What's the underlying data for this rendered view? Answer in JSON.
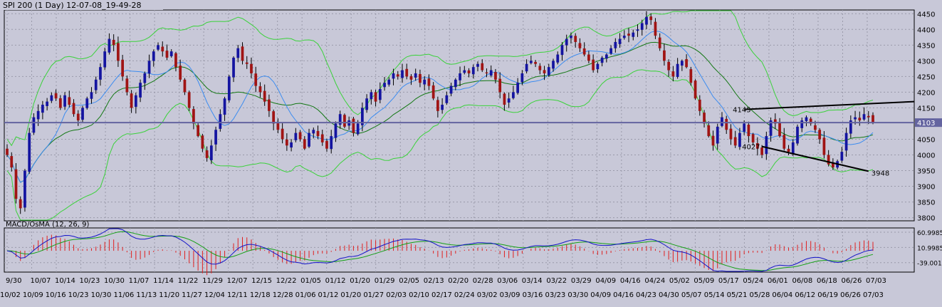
{
  "main_title": "SPI 200 (1 Day) 12-07-08_19-49-28",
  "macd_title": "MACD/OsMA (12, 26, 9)",
  "colors": {
    "background": "#c8c8d8",
    "grid": "#9a9aaa",
    "bull": "#1414a0",
    "bear": "#a01414",
    "bb_outer": "#3ad23a",
    "bb_mid": "#147814",
    "ma_inner": "#3c8cf0",
    "macd_line": "#1414c8",
    "signal_line": "#14a014",
    "histogram": "#e02020",
    "trendline": "#000000",
    "level_line": "#6464a0"
  },
  "chart_data": [
    {
      "type": "candlestick",
      "title": "SPI 200 (1 Day) 12-07-08_19-49-28",
      "y_ticks": [
        4450,
        4400,
        4350,
        4300,
        4250,
        4200,
        4150,
        4103,
        4050,
        4000,
        3950,
        3900,
        3850,
        3800
      ],
      "ylim": [
        3790,
        4462
      ],
      "current_value": 4103,
      "grid": true,
      "x_tick_labels_top": [
        "9/30",
        "10/07",
        "10/14",
        "10/23",
        "10/30",
        "11/07",
        "11/14",
        "11/22",
        "11/29",
        "12/07",
        "12/15",
        "12/22",
        "01/05",
        "01/12",
        "01/20",
        "01/29",
        "02/05",
        "02/13",
        "02/20",
        "02/28",
        "03/06",
        "03/14",
        "03/22",
        "03/29",
        "04/09",
        "04/16",
        "04/24",
        "05/02",
        "05/09",
        "05/17",
        "05/24",
        "06/01",
        "06/08",
        "06/18",
        "06/26",
        "07/03"
      ],
      "x_tick_labels_bottom": [
        "10/02",
        "10/09",
        "10/16",
        "10/23",
        "10/30",
        "11/06",
        "11/13",
        "11/20",
        "11/27",
        "12/04",
        "12/11",
        "12/18",
        "12/28",
        "01/06",
        "01/12",
        "01/20",
        "01/27",
        "02/03",
        "02/10",
        "02/17",
        "02/24",
        "03/02",
        "03/09",
        "03/16",
        "03/23",
        "03/30",
        "04/09",
        "04/16",
        "04/23",
        "04/30",
        "05/07",
        "05/14",
        "05/21",
        "05/28",
        "06/04",
        "06/12",
        "06/19",
        "06/26",
        "07/03"
      ],
      "closes": [
        4000,
        3960,
        3860,
        3830,
        3950,
        4070,
        4120,
        4140,
        4160,
        4170,
        4190,
        4180,
        4150,
        4190,
        4160,
        4130,
        4110,
        4150,
        4180,
        4200,
        4240,
        4280,
        4330,
        4370,
        4350,
        4300,
        4250,
        4200,
        4150,
        4190,
        4230,
        4260,
        4300,
        4330,
        4350,
        4330,
        4310,
        4330,
        4280,
        4240,
        4200,
        4150,
        4100,
        4060,
        4020,
        3990,
        4030,
        4080,
        4130,
        4180,
        4250,
        4310,
        4340,
        4300,
        4290,
        4260,
        4220,
        4200,
        4170,
        4140,
        4100,
        4080,
        4050,
        4030,
        4040,
        4070,
        4050,
        4020,
        4070,
        4080,
        4060,
        4040,
        4020,
        4060,
        4100,
        4130,
        4090,
        4110,
        4070,
        4100,
        4150,
        4180,
        4200,
        4170,
        4210,
        4230,
        4240,
        4260,
        4250,
        4270,
        4250,
        4240,
        4260,
        4230,
        4240,
        4220,
        4180,
        4140,
        4160,
        4190,
        4220,
        4240,
        4260,
        4270,
        4260,
        4280,
        4290,
        4270,
        4260,
        4270,
        4240,
        4200,
        4160,
        4180,
        4200,
        4230,
        4260,
        4290,
        4300,
        4290,
        4270,
        4260,
        4280,
        4300,
        4320,
        4350,
        4370,
        4380,
        4360,
        4340,
        4320,
        4300,
        4270,
        4290,
        4310,
        4320,
        4340,
        4360,
        4370,
        4380,
        4380,
        4390,
        4400,
        4420,
        4440,
        4430,
        4380,
        4340,
        4300,
        4270,
        4250,
        4290,
        4300,
        4280,
        4230,
        4180,
        4140,
        4100,
        4060,
        4030,
        4090,
        4120,
        4080,
        4050,
        4030,
        4070,
        4100,
        4060,
        4040,
        4020,
        4000,
        4060,
        4110,
        4100,
        4060,
        4020,
        4010,
        4040,
        4090,
        4110,
        4120,
        4100,
        4080,
        4050,
        4000,
        3970,
        3960,
        3980,
        4010,
        4070,
        4110,
        4120,
        4110,
        4130,
        4120,
        4103
      ],
      "annotations": [
        {
          "text": "4145",
          "price": 4145
        },
        {
          "text": "4027",
          "price": 4027
        },
        {
          "text": "3948",
          "price": 3948
        }
      ],
      "series": [
        {
          "kind": "candles"
        },
        {
          "kind": "bollinger_outer"
        },
        {
          "kind": "bollinger_mid"
        },
        {
          "kind": "ma_inner"
        }
      ]
    },
    {
      "type": "line",
      "title": "MACD/OsMA (12, 26, 9)",
      "y_ticks": [
        60.9985,
        10.9985,
        -39.001
      ],
      "ylim": [
        -70,
        75
      ],
      "series": [
        {
          "kind": "macd_line"
        },
        {
          "kind": "signal_line"
        },
        {
          "kind": "histogram"
        }
      ]
    }
  ]
}
